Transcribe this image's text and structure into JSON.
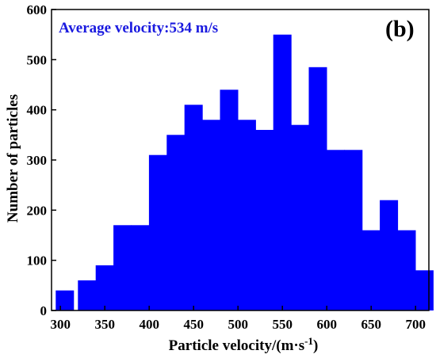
{
  "chart_data": {
    "type": "bar",
    "panel_label": "(b)",
    "annotation": "Average velocity:534 m/s",
    "xlabel": "Particle velocity/(m·s",
    "xlabel_superscript": "-1",
    "xlabel_close": ")",
    "ylabel": "Number of particles",
    "bar_color": "#0000ff",
    "annotation_color": "#1a1adf",
    "xlim": [
      290,
      715
    ],
    "ylim": [
      0,
      600
    ],
    "x_ticks": [
      300,
      350,
      400,
      450,
      500,
      550,
      600,
      650,
      700
    ],
    "y_ticks": [
      0,
      100,
      200,
      300,
      400,
      500,
      600
    ],
    "bin_width": 25,
    "bins": [
      {
        "x": 305,
        "value": 40
      },
      {
        "x": 330,
        "value": 60
      },
      {
        "x": 350,
        "value": 90
      },
      {
        "x": 370,
        "value": 170
      },
      {
        "x": 390,
        "value": 170
      },
      {
        "x": 410,
        "value": 310
      },
      {
        "x": 430,
        "value": 350
      },
      {
        "x": 450,
        "value": 410
      },
      {
        "x": 470,
        "value": 380
      },
      {
        "x": 490,
        "value": 440
      },
      {
        "x": 510,
        "value": 380
      },
      {
        "x": 530,
        "value": 360
      },
      {
        "x": 550,
        "value": 550
      },
      {
        "x": 570,
        "value": 370
      },
      {
        "x": 590,
        "value": 485
      },
      {
        "x": 610,
        "value": 320
      },
      {
        "x": 630,
        "value": 320
      },
      {
        "x": 650,
        "value": 160
      },
      {
        "x": 670,
        "value": 220
      },
      {
        "x": 690,
        "value": 160
      },
      {
        "x": 710,
        "value": 80
      }
    ]
  }
}
